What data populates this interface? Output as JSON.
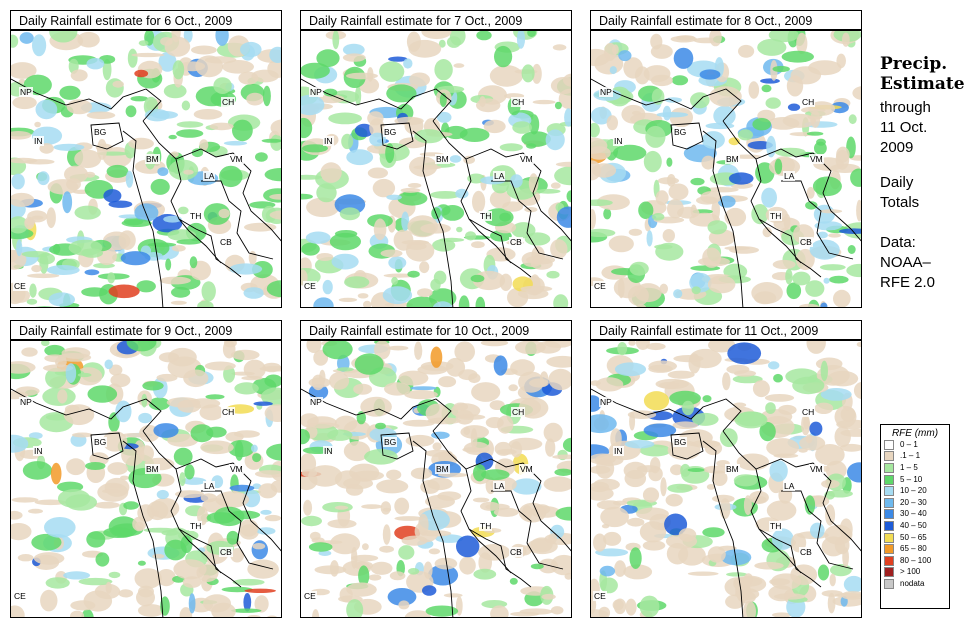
{
  "panels": [
    {
      "title": "Daily Rainfall estimate for  6 Oct., 2009"
    },
    {
      "title": "Daily Rainfall estimate for  7 Oct., 2009"
    },
    {
      "title": "Daily Rainfall estimate for  8 Oct., 2009"
    },
    {
      "title": "Daily Rainfall estimate for  9 Oct., 2009"
    },
    {
      "title": "Daily Rainfall estimate for  10 Oct., 2009"
    },
    {
      "title": "Daily Rainfall estimate for  11 Oct., 2009"
    }
  ],
  "country_labels": [
    "NP",
    "IN",
    "BG",
    "BM",
    "CH",
    "VM",
    "LA",
    "TH",
    "CB",
    "CE"
  ],
  "sidebar": {
    "title_line1": "Precip.",
    "title_line2": "Estimate",
    "through_line1": "through",
    "through_line2": "11 Oct.",
    "through_line3": "2009",
    "daily_line1": "Daily",
    "daily_line2": "Totals",
    "source_line1": "Data:",
    "source_line2": "NOAA–",
    "source_line3": "RFE 2.0"
  },
  "legend": {
    "title": "RFE (mm)",
    "items": [
      {
        "label": "0 – 1",
        "color": "#ffffff"
      },
      {
        "label": ".1 – 1",
        "color": "#e8d6c0"
      },
      {
        "label": "1 – 5",
        "color": "#a6e8a0"
      },
      {
        "label": "5 – 10",
        "color": "#5ed86a"
      },
      {
        "label": "10 – 20",
        "color": "#a6dcf2"
      },
      {
        "label": "20 – 30",
        "color": "#6eb9ee"
      },
      {
        "label": "30 – 40",
        "color": "#3c8ae6"
      },
      {
        "label": "40 – 50",
        "color": "#1e5cd8"
      },
      {
        "label": "50 – 65",
        "color": "#f2dc54"
      },
      {
        "label": "65 – 80",
        "color": "#f29a28"
      },
      {
        "label": "80 – 100",
        "color": "#e04020"
      },
      {
        "label": "> 100",
        "color": "#a02020"
      },
      {
        "label": "nodata",
        "color": "#c8c8c8"
      }
    ]
  }
}
